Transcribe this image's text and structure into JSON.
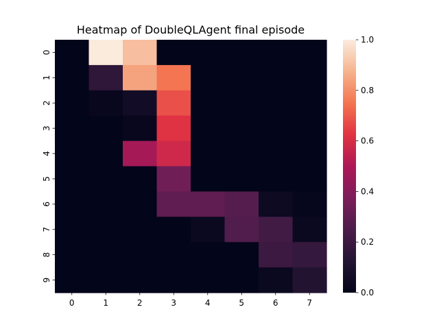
{
  "chart_data": {
    "type": "heatmap",
    "title": "Heatmap of DoubleQLAgent final episode",
    "xlabel": "",
    "ylabel": "",
    "x_categories": [
      "0",
      "1",
      "2",
      "3",
      "4",
      "5",
      "6",
      "7"
    ],
    "y_categories": [
      "0",
      "1",
      "2",
      "3",
      "4",
      "5",
      "6",
      "7",
      "8",
      "9"
    ],
    "values": [
      [
        0.0,
        1.0,
        0.9,
        0.0,
        0.0,
        0.0,
        0.0,
        0.0
      ],
      [
        0.0,
        0.16,
        0.84,
        0.75,
        0.0,
        0.0,
        0.0,
        0.0
      ],
      [
        0.0,
        0.02,
        0.06,
        0.68,
        0.0,
        0.0,
        0.0,
        0.0
      ],
      [
        0.0,
        0.0,
        0.02,
        0.62,
        0.0,
        0.0,
        0.0,
        0.0
      ],
      [
        0.0,
        0.0,
        0.48,
        0.58,
        0.0,
        0.0,
        0.0,
        0.0
      ],
      [
        0.0,
        0.0,
        0.0,
        0.34,
        0.0,
        0.0,
        0.0,
        0.0
      ],
      [
        0.0,
        0.0,
        0.0,
        0.3,
        0.3,
        0.27,
        0.04,
        0.01
      ],
      [
        0.0,
        0.0,
        0.0,
        0.0,
        0.03,
        0.26,
        0.22,
        0.03
      ],
      [
        0.0,
        0.0,
        0.0,
        0.0,
        0.0,
        0.0,
        0.2,
        0.18
      ],
      [
        0.0,
        0.0,
        0.0,
        0.0,
        0.0,
        0.0,
        0.03,
        0.12
      ]
    ],
    "vmin": 0.0,
    "vmax": 1.0,
    "colormap": "rocket",
    "colorbar": {
      "ticks": [
        0.0,
        0.2,
        0.4,
        0.6,
        0.8,
        1.0
      ],
      "tick_labels": [
        "0.0",
        "0.2",
        "0.4",
        "0.6",
        "0.8",
        "1.0"
      ]
    }
  }
}
